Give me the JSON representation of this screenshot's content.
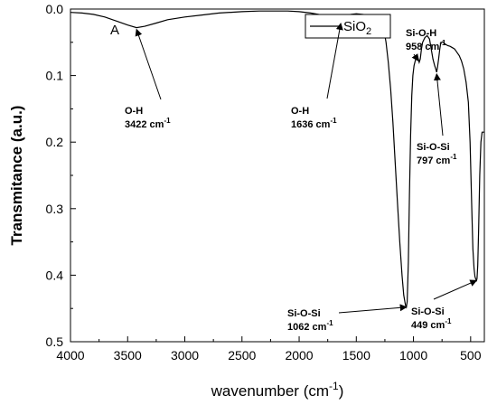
{
  "chart_data": {
    "type": "line",
    "panel_label": "A",
    "xlabel": "wavenumber (cm",
    "xlabel_sup": "-1",
    "xlabel_end": ")",
    "ylabel": "Transmitance (a.u.)",
    "xlim": [
      4000,
      380
    ],
    "ylim": [
      0,
      0.5
    ],
    "x_ticks": [
      4000,
      3500,
      3000,
      2500,
      2000,
      1500,
      1000,
      500
    ],
    "y_ticks": [
      0.0,
      0.1,
      0.2,
      0.3,
      0.4,
      0.5
    ],
    "y_tick_labels": [
      "0.0",
      "0.1",
      "0.2",
      "0.3",
      "0.4",
      "0.5"
    ],
    "y_inverted": true,
    "grid": false,
    "legend": {
      "position": "top-right",
      "entries": [
        "SiO2"
      ],
      "entry_main": "SiO",
      "entry_sub": "2"
    },
    "series": [
      {
        "name": "SiO2",
        "color": "#000000",
        "x": [
          4000,
          3900,
          3800,
          3700,
          3600,
          3500,
          3422,
          3350,
          3250,
          3150,
          3000,
          2850,
          2700,
          2500,
          2350,
          2200,
          2100,
          2000,
          1900,
          1800,
          1700,
          1660,
          1636,
          1610,
          1580,
          1550,
          1500,
          1450,
          1400,
          1350,
          1300,
          1280,
          1260,
          1240,
          1220,
          1200,
          1180,
          1160,
          1140,
          1120,
          1100,
          1085,
          1070,
          1062,
          1055,
          1045,
          1035,
          1025,
          1015,
          1005,
          995,
          985,
          975,
          965,
          958,
          950,
          940,
          930,
          920,
          900,
          880,
          860,
          845,
          830,
          815,
          805,
          797,
          790,
          780,
          770,
          760,
          740,
          720,
          700,
          680,
          660,
          640,
          620,
          600,
          580,
          560,
          540,
          520,
          505,
          490,
          480,
          470,
          462,
          455,
          449,
          444,
          438,
          430,
          420,
          410,
          400,
          390,
          380
        ],
        "y": [
          0.005,
          0.006,
          0.008,
          0.012,
          0.018,
          0.024,
          0.028,
          0.026,
          0.021,
          0.016,
          0.012,
          0.009,
          0.006,
          0.004,
          0.003,
          0.003,
          0.003,
          0.004,
          0.006,
          0.009,
          0.013,
          0.017,
          0.019,
          0.016,
          0.011,
          0.008,
          0.007,
          0.008,
          0.009,
          0.011,
          0.013,
          0.018,
          0.03,
          0.05,
          0.08,
          0.12,
          0.17,
          0.23,
          0.29,
          0.35,
          0.4,
          0.43,
          0.445,
          0.448,
          0.44,
          0.38,
          0.28,
          0.19,
          0.13,
          0.1,
          0.085,
          0.078,
          0.072,
          0.07,
          0.075,
          0.08,
          0.075,
          0.06,
          0.05,
          0.043,
          0.04,
          0.045,
          0.06,
          0.075,
          0.085,
          0.09,
          0.095,
          0.088,
          0.075,
          0.06,
          0.05,
          0.05,
          0.053,
          0.055,
          0.056,
          0.058,
          0.06,
          0.065,
          0.07,
          0.078,
          0.09,
          0.11,
          0.14,
          0.2,
          0.3,
          0.36,
          0.39,
          0.402,
          0.406,
          0.408,
          0.405,
          0.385,
          0.33,
          0.25,
          0.2,
          0.185,
          0.185,
          0.185
        ]
      }
    ],
    "annotations": [
      {
        "line1": "O-H",
        "line2": "3422 cm",
        "sup": "-1",
        "peak": [
          3422,
          0.028
        ]
      },
      {
        "line1": "O-H",
        "line2": "1636 cm",
        "sup": "-1",
        "peak": [
          1636,
          0.019
        ]
      },
      {
        "line1": "Si-O-H",
        "line2": "958 cm",
        "sup": "-1",
        "peak": [
          958,
          0.075
        ]
      },
      {
        "line1": "Si-O-Si",
        "line2": "797 cm",
        "sup": "-1",
        "peak": [
          797,
          0.095
        ]
      },
      {
        "line1": "Si-O-Si",
        "line2": "1062 cm",
        "sup": "-1",
        "peak": [
          1062,
          0.448
        ]
      },
      {
        "line1": "Si-O-Si",
        "line2": "449 cm",
        "sup": "-1",
        "peak": [
          449,
          0.408
        ]
      }
    ]
  }
}
